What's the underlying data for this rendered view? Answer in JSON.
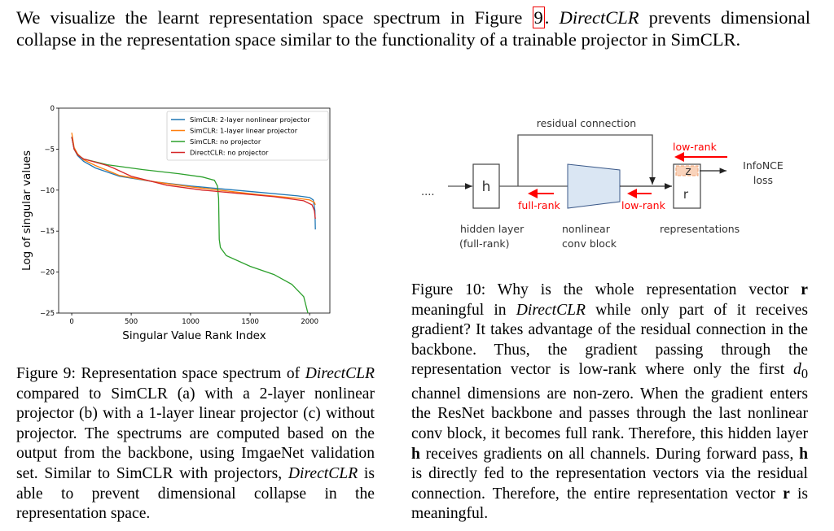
{
  "intro": {
    "s1": "We visualize the learnt representation space spectrum in Figure ",
    "ref": "9",
    "s2": ". ",
    "em": "DirectCLR",
    "s3": " prevents dimensional collapse in the representation space similar to the functionality of a trainable projector in SimCLR."
  },
  "fig9_caption": {
    "a": "Figure 9: Representation space spectrum of ",
    "em1": "DirectCLR",
    "b": " compared to SimCLR (a) with a 2-layer nonlinear projector (b) with a 1-layer linear projector (c) without projector. The spectrums are computed based on the output from the backbone, using ImgaeNet validation set. Similar to SimCLR with projectors, ",
    "em2": "DirectCLR",
    "c": " is able to prevent dimensional collapse in the representation space."
  },
  "fig10_caption": {
    "a": "Figure 10: Why is the whole representation vector ",
    "r1": "r",
    "b": " meaningful in ",
    "em1": "DirectCLR",
    "c": " while only part of it receives gradient? It takes advantage of the residual connection in the backbone. Thus, the gradient passing through the representation vector is low-rank where only the first ",
    "d0": "d",
    "d0sub": "0",
    "d": " channel dimensions are non-zero. When the gradient enters the ResNet backbone and passes through the last nonlinear conv block, it becomes full rank. Therefore, this hidden layer ",
    "h1": "h",
    "e": " receives gradients on all channels. During forward pass, ",
    "h2": "h",
    "f": " is directly fed to the representation vectors via the residual connection. Therefore, the entire representation vector ",
    "r2": "r",
    "g": " is meaningful."
  },
  "diagram": {
    "dots": "....",
    "h": "h",
    "z": "z",
    "r": "r",
    "residual": "residual connection",
    "low_rank_top": "low-rank",
    "full_rank": "full-rank",
    "low_rank_mid": "low-rank",
    "infonce": "InfoNCE",
    "loss": "loss",
    "hidden_layer": "hidden layer",
    "hidden_layer2": "(full-rank)",
    "nonlinear": "nonlinear",
    "conv_block": "conv block",
    "representations": "representations",
    "colors": {
      "red": "#ff0000",
      "block_fill": "#dae6f3",
      "block_stroke": "#3c5a8a",
      "z_fill": "#f9d3bb"
    }
  },
  "chart_data": {
    "type": "line",
    "xlabel": "Singular Value Rank Index",
    "ylabel": "Log of singular values",
    "xlim": [
      -110,
      2170
    ],
    "ylim": [
      -25,
      0
    ],
    "xticks": [
      0,
      500,
      1000,
      1500,
      2000
    ],
    "yticks": [
      0,
      -5,
      -10,
      -15,
      -20,
      -25
    ],
    "ytick_labels": [
      "0",
      "−5",
      "−10",
      "−15",
      "−20",
      "−25"
    ],
    "grid": false,
    "legend_position": "top-right",
    "series": [
      {
        "name": "SimCLR: 2-layer nonlinear projector",
        "color": "#1f77b4",
        "x": [
          0,
          20,
          50,
          100,
          200,
          400,
          700,
          1000,
          1300,
          1600,
          1900,
          2000,
          2030,
          2045,
          2048
        ],
        "y": [
          -3.5,
          -5,
          -5.8,
          -6.5,
          -7.3,
          -8.3,
          -9,
          -9.5,
          -9.9,
          -10.3,
          -10.7,
          -10.9,
          -11.2,
          -12.5,
          -14.8
        ]
      },
      {
        "name": "SimCLR: 1-layer linear projector",
        "color": "#ff7f0e",
        "x": [
          0,
          20,
          50,
          100,
          200,
          400,
          700,
          1000,
          1300,
          1600,
          1900,
          2000,
          2040,
          2048
        ],
        "y": [
          -3,
          -4.8,
          -5.6,
          -6.3,
          -7,
          -8.2,
          -9,
          -9.6,
          -10.1,
          -10.6,
          -11,
          -11.2,
          -11.5,
          -11.8
        ]
      },
      {
        "name": "SimCLR: no projector",
        "color": "#2ca02c",
        "x": [
          0,
          20,
          50,
          100,
          300,
          600,
          900,
          1100,
          1200,
          1225,
          1235,
          1240,
          1250,
          1300,
          1500,
          1700,
          1850,
          1950,
          1985
        ],
        "y": [
          -3.5,
          -5,
          -5.7,
          -6.2,
          -6.9,
          -7.5,
          -8,
          -8.4,
          -8.8,
          -9.5,
          -11,
          -16,
          -17,
          -18,
          -19.3,
          -20.3,
          -21.5,
          -23,
          -25
        ]
      },
      {
        "name": "DirectCLR: no projector",
        "color": "#d62728",
        "x": [
          0,
          20,
          50,
          100,
          200,
          300,
          350,
          500,
          800,
          1100,
          1400,
          1700,
          1950,
          2020,
          2040,
          2048
        ],
        "y": [
          -3.5,
          -5,
          -5.7,
          -6.2,
          -6.6,
          -7,
          -7.3,
          -8.3,
          -9.4,
          -10,
          -10.4,
          -10.8,
          -11.3,
          -11.8,
          -12.5,
          -13.5
        ]
      }
    ]
  }
}
